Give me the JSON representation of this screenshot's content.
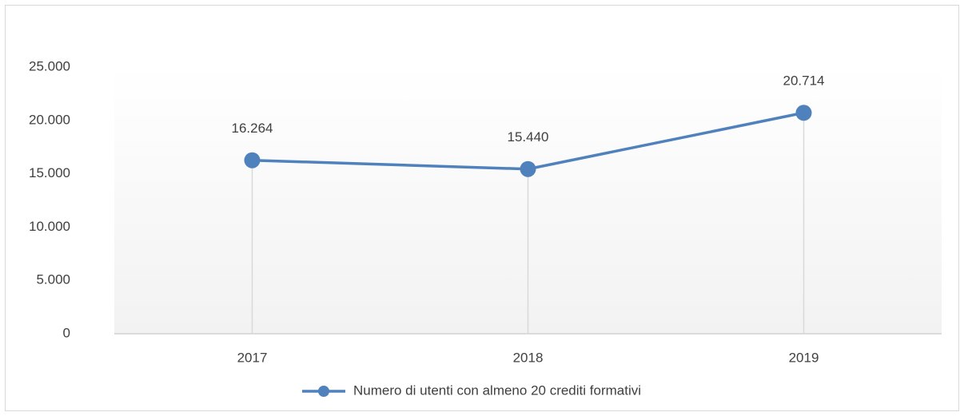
{
  "chart_data": {
    "type": "line",
    "categories": [
      "2017",
      "2018",
      "2019"
    ],
    "series": [
      {
        "name": "Numero di utenti con almeno 20 crediti formativi",
        "color": "#4f81bd",
        "values": [
          16264,
          15440,
          20714
        ],
        "value_labels": [
          "16.264",
          "15.440",
          "20.714"
        ]
      }
    ],
    "ylim": [
      0,
      25000
    ],
    "yticks": [
      0,
      {
        "value": 5000,
        "label": "5.000"
      },
      {
        "value": 10000,
        "label": "10.000"
      },
      {
        "value": 15000,
        "label": "15.000"
      },
      {
        "value": 20000,
        "label": "20.000"
      },
      {
        "value": 25000,
        "label": "25.000"
      }
    ],
    "grid": false,
    "drop_lines": true,
    "legend": "bottom"
  }
}
